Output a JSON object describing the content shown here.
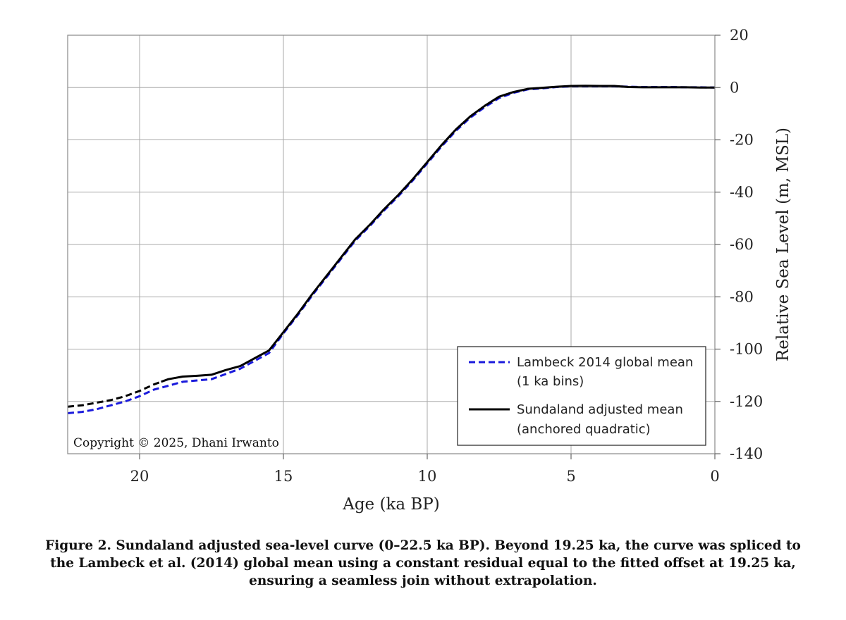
{
  "chart_data": {
    "type": "line",
    "xlabel": "Age (ka BP)",
    "ylabel": "Relative Sea Level (m, MSL)",
    "xlim": [
      22.5,
      0
    ],
    "ylim": [
      -140,
      20
    ],
    "x_reversed": true,
    "y_axis_position": "right",
    "grid": true,
    "x_ticks": [
      {
        "value": 20,
        "label": "20"
      },
      {
        "value": 15,
        "label": "15"
      },
      {
        "value": 10,
        "label": "10"
      },
      {
        "value": 5,
        "label": "5"
      },
      {
        "value": 0,
        "label": "0"
      }
    ],
    "y_ticks": [
      {
        "value": 20,
        "label": "20"
      },
      {
        "value": 0,
        "label": "0"
      },
      {
        "value": -20,
        "label": "-20"
      },
      {
        "value": -40,
        "label": "-40"
      },
      {
        "value": -60,
        "label": "-60"
      },
      {
        "value": -80,
        "label": "-80"
      },
      {
        "value": -100,
        "label": "-100"
      },
      {
        "value": -120,
        "label": "-120"
      },
      {
        "value": -140,
        "label": "-140"
      }
    ],
    "legend_position": "bottom-right",
    "series": [
      {
        "name_line1": "Lambeck 2014 global mean",
        "name_line2": "(1 ka bins)",
        "color": "#1a1adc",
        "style": "dashed",
        "x": [
          22.5,
          22,
          21.5,
          21,
          20.5,
          20,
          19.5,
          19,
          18.5,
          18,
          17.5,
          17,
          16.5,
          16,
          15.5,
          15,
          14.5,
          14,
          13.5,
          13,
          12.5,
          12,
          11.5,
          11,
          10.5,
          10,
          9.5,
          9,
          8.5,
          8,
          7.5,
          7,
          6.5,
          6,
          5.5,
          5,
          4.5,
          4,
          3.5,
          3,
          2.5,
          2,
          1.5,
          1,
          0.5,
          0
        ],
        "y": [
          -124.5,
          -124,
          -123,
          -121.5,
          -120,
          -118,
          -115.5,
          -114,
          -112.5,
          -112,
          -111.5,
          -109.5,
          -107.5,
          -104.5,
          -101.5,
          -94,
          -87,
          -79.5,
          -72.5,
          -65.5,
          -58.5,
          -53,
          -47,
          -41.5,
          -35.5,
          -29,
          -22.5,
          -16.5,
          -11.5,
          -7.5,
          -4,
          -2,
          -0.7,
          -0.3,
          0.2,
          0.5,
          0.5,
          0.5,
          0.5,
          0.3,
          0.2,
          0.2,
          0.2,
          0.1,
          0.1,
          0
        ]
      },
      {
        "name_line1": "Sundaland adjusted mean",
        "name_line2": "(anchored quadratic)",
        "color": "#000000",
        "style": "solid",
        "spliced_beyond": 19.25,
        "x": [
          22.5,
          22,
          21.5,
          21,
          20.5,
          20,
          19.5,
          19.25,
          19,
          18.5,
          18,
          17.5,
          17,
          16.5,
          16,
          15.5,
          15,
          14.5,
          14,
          13.5,
          13,
          12.5,
          12,
          11.5,
          11,
          10.5,
          10,
          9.5,
          9,
          8.5,
          8,
          7.5,
          7,
          6.5,
          6,
          5.5,
          5,
          4.5,
          4,
          3.5,
          3,
          2.5,
          2,
          1.5,
          1,
          0.5,
          0
        ],
        "y": [
          -122,
          -121.5,
          -120.5,
          -119.5,
          -118,
          -116,
          -113.5,
          -112.5,
          -111.5,
          -110.5,
          -110.2,
          -109.8,
          -108,
          -106.5,
          -103.5,
          -100.5,
          -93.5,
          -86.5,
          -79,
          -72,
          -65,
          -58,
          -52.5,
          -46.5,
          -41,
          -35,
          -28.5,
          -22,
          -16,
          -11,
          -7,
          -3.5,
          -1.7,
          -0.5,
          -0.1,
          0.3,
          0.6,
          0.7,
          0.6,
          0.6,
          0.2,
          0.1,
          0.1,
          0.1,
          0.1,
          0,
          0
        ]
      }
    ]
  },
  "copyright": "Copyright © 2025, Dhani Irwanto",
  "caption": {
    "line1": "Figure 2. Sundaland adjusted sea-level curve (0–22.5 ka BP). Beyond 19.25 ka, the curve was spliced to",
    "line2": "the Lambeck et al. (2014) global mean using a constant residual equal to the fitted offset at 19.25 ka,",
    "line3": "ensuring a seamless join without extrapolation."
  }
}
